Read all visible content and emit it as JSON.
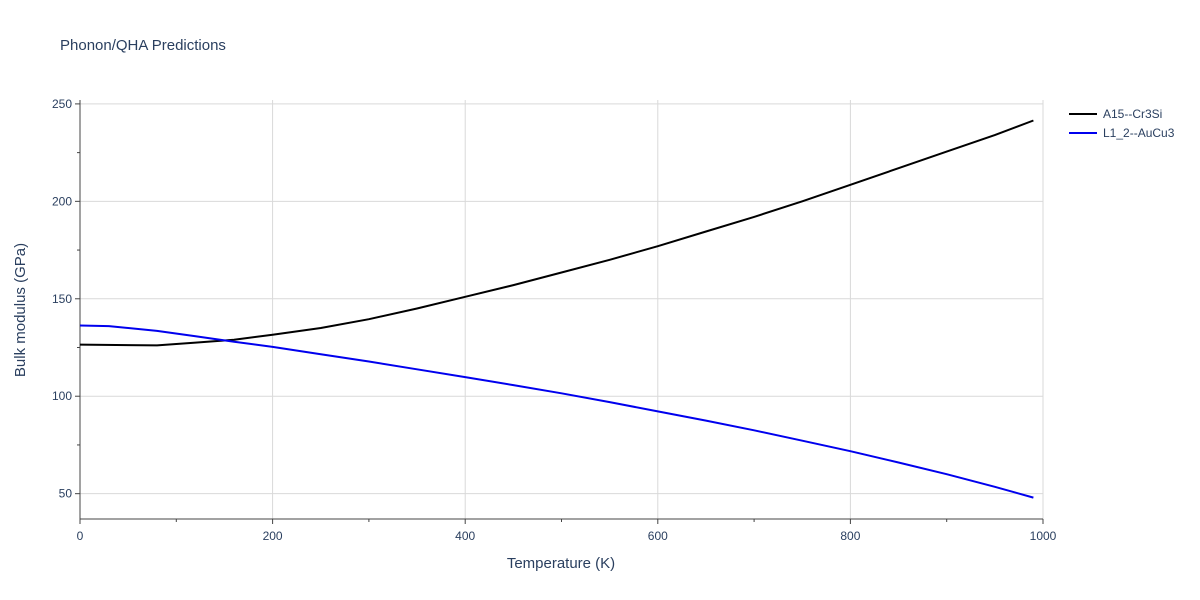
{
  "chart_data": {
    "type": "line",
    "title": "Phonon/QHA Predictions",
    "xlabel": "Temperature (K)",
    "ylabel": "Bulk modulus (GPa)",
    "xlim": [
      0,
      1000
    ],
    "ylim": [
      37,
      252
    ],
    "xticks": [
      0,
      200,
      400,
      600,
      800,
      1000
    ],
    "xtick_labels": [
      "0",
      "200",
      "400",
      "600",
      "800",
      "1000"
    ],
    "yticks": [
      50,
      100,
      150,
      200,
      250
    ],
    "ytick_labels": [
      "50",
      "100",
      "150",
      "200",
      "250"
    ],
    "grid": true,
    "legend_position": "top-right",
    "series": [
      {
        "name": "A15--Cr3Si",
        "color": "#000000",
        "x": [
          0,
          80,
          120,
          160,
          200,
          250,
          300,
          350,
          400,
          450,
          500,
          550,
          600,
          650,
          700,
          750,
          800,
          850,
          900,
          950,
          990
        ],
        "y": [
          126.5,
          126.1,
          127.5,
          129.0,
          131.5,
          135.0,
          139.5,
          145.0,
          151.0,
          157.0,
          163.5,
          170.0,
          177.0,
          184.5,
          192.0,
          200.0,
          208.5,
          217.0,
          225.5,
          234.0,
          241.5
        ]
      },
      {
        "name": "L1_2--AuCu3",
        "color": "#0000ee",
        "x": [
          0,
          30,
          80,
          120,
          160,
          200,
          250,
          300,
          350,
          400,
          450,
          500,
          550,
          600,
          650,
          700,
          750,
          800,
          850,
          900,
          950,
          990
        ],
        "y": [
          136.3,
          136.0,
          133.5,
          130.8,
          128.0,
          125.3,
          121.5,
          117.8,
          113.8,
          109.8,
          105.7,
          101.5,
          97.0,
          92.2,
          87.5,
          82.5,
          77.2,
          71.8,
          66.0,
          60.0,
          53.5,
          48.0
        ]
      }
    ]
  }
}
